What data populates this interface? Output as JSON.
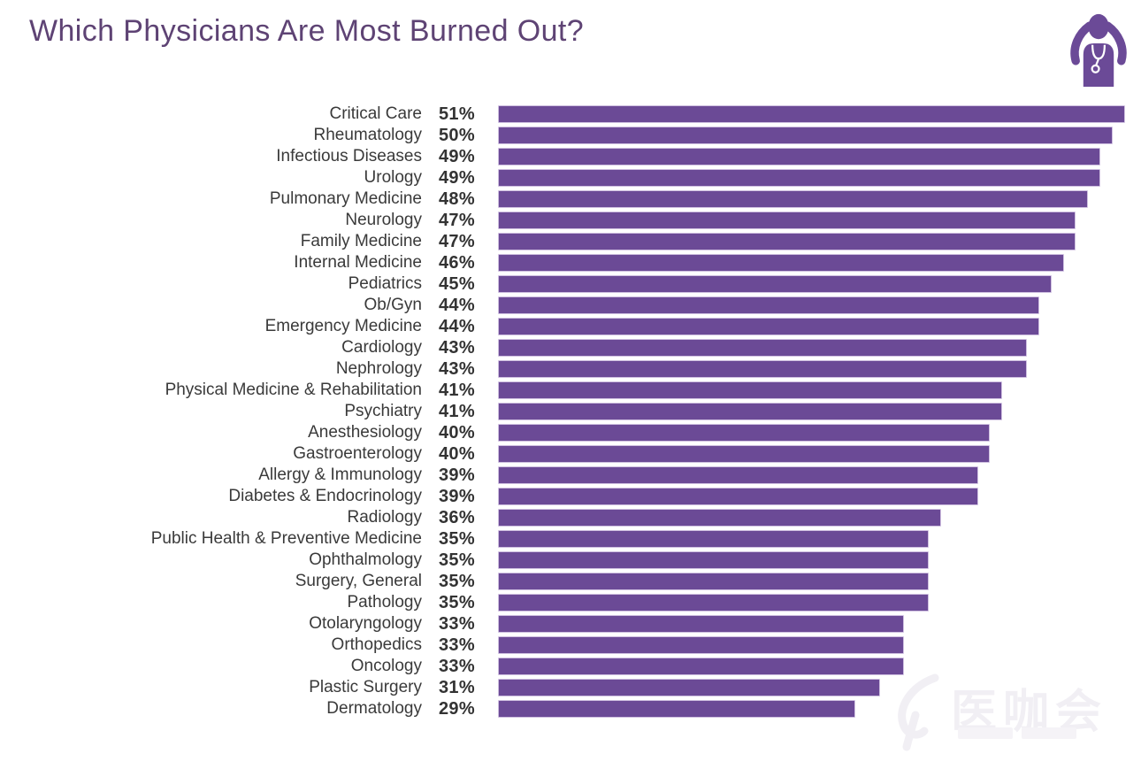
{
  "header": {
    "title": "Which Physicians Are Most Burned Out?",
    "title_color": "#5e4374",
    "icon": "burned-out-physician-icon"
  },
  "colors": {
    "bar": "#6b4a96",
    "bar_border": "#cfc0e0",
    "category_label": "#3a3a3a",
    "value_label": "#333333",
    "title_purple": "#5e4374",
    "background": "#ffffff",
    "watermark": "#f1eff4"
  },
  "watermark": {
    "logo_text": "医咖会"
  },
  "chart_data": {
    "type": "bar",
    "orientation": "horizontal",
    "title": "Which Physicians Are Most Burned Out?",
    "categories": [
      "Critical Care",
      "Rheumatology",
      "Infectious Diseases",
      "Urology",
      "Pulmonary Medicine",
      "Neurology",
      "Family Medicine",
      "Internal Medicine",
      "Pediatrics",
      "Ob/Gyn",
      "Emergency Medicine",
      "Cardiology",
      "Nephrology",
      "Physical Medicine & Rehabilitation",
      "Psychiatry",
      "Anesthesiology",
      "Gastroenterology",
      "Allergy & Immunology",
      "Diabetes & Endocrinology",
      "Radiology",
      "Public Health & Preventive Medicine",
      "Ophthalmology",
      "Surgery, General",
      "Pathology",
      "Otolaryngology",
      "Orthopedics",
      "Oncology",
      "Plastic Surgery",
      "Dermatology"
    ],
    "values": [
      51,
      50,
      49,
      49,
      48,
      47,
      47,
      46,
      45,
      44,
      44,
      43,
      43,
      41,
      41,
      40,
      40,
      39,
      39,
      36,
      35,
      35,
      35,
      35,
      33,
      33,
      33,
      31,
      29
    ],
    "value_suffix": "%",
    "xlim": [
      0,
      51
    ],
    "grid": false,
    "legend": false,
    "bar_color": "#6b4a96",
    "value_labels_shown": true,
    "data_labels_position": "left-of-bar"
  }
}
